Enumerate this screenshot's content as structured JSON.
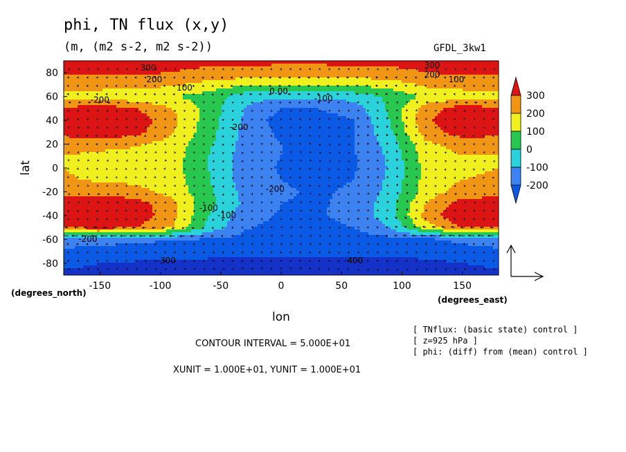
{
  "figure": {
    "title": "phi, TN flux (x,y)",
    "units_line": "(m, (m2 s-2, m2 s-2))",
    "model_label": "GFDL_3kw1",
    "contour_interval": "CONTOUR INTERVAL = 5.000E+01",
    "unit_vectors": "XUNIT = 1.000E+01, YUNIT = 1.000E+01",
    "notes": [
      "[ TNflux: (basic state) control ]",
      "[ z=925 hPa ]",
      "[ phi: (diff) from (mean) control ]"
    ]
  },
  "chart_data": {
    "type": "heatmap",
    "title": "phi, TN flux (x,y)",
    "xlabel": "lon",
    "ylabel": "lat",
    "x_unit_label": "(degrees_east)",
    "y_unit_label": "(degrees_north)",
    "xlim": [
      -180,
      180
    ],
    "ylim": [
      -90,
      90
    ],
    "x_ticks": [
      -150,
      -100,
      -50,
      0,
      50,
      100,
      150
    ],
    "y_ticks": [
      -80,
      -60,
      -40,
      -20,
      0,
      20,
      40,
      60,
      80
    ],
    "x_tick_labels": [
      "-150",
      "-100",
      "-50",
      "0",
      "50",
      "100",
      "150"
    ],
    "y_tick_labels": [
      "-80",
      "-60",
      "-40",
      "-20",
      "0",
      "20",
      "40",
      "60",
      "80"
    ],
    "colorbar": {
      "levels": [
        -200,
        -100,
        0,
        100,
        200,
        300
      ],
      "labels": [
        "-200",
        "-100",
        "0",
        "100",
        "200",
        "300"
      ],
      "colors": [
        "#0a5ae6",
        "#19b4f0",
        "#23dc23",
        "#f0f01e",
        "#f09614",
        "#dc1414",
        "#1432c8",
        "#3c82f0",
        "#2ad2dc",
        "#28c850"
      ]
    },
    "approx_field": {
      "description": "approximate phi (m) as a function of lat (rows) and lon (columns)",
      "lon": [
        -180,
        -150,
        -120,
        -90,
        -60,
        -30,
        0,
        30,
        60,
        90,
        120,
        150,
        180
      ],
      "lat": [
        90,
        80,
        70,
        60,
        50,
        40,
        30,
        20,
        10,
        0,
        -10,
        -20,
        -30,
        -40,
        -50,
        -60,
        -70,
        -80,
        -90
      ],
      "values": [
        [
          320,
          320,
          320,
          320,
          320,
          320,
          320,
          320,
          320,
          320,
          320,
          320,
          320
        ],
        [
          310,
          310,
          310,
          300,
          280,
          270,
          260,
          260,
          270,
          280,
          300,
          310,
          310
        ],
        [
          240,
          240,
          230,
          220,
          160,
          120,
          100,
          100,
          110,
          150,
          220,
          240,
          240
        ],
        [
          160,
          150,
          130,
          100,
          60,
          -60,
          -80,
          -80,
          -60,
          20,
          120,
          150,
          160
        ],
        [
          310,
          360,
          300,
          200,
          60,
          -100,
          -200,
          -200,
          -150,
          20,
          250,
          350,
          310
        ],
        [
          360,
          420,
          360,
          230,
          50,
          -120,
          -250,
          -250,
          -200,
          0,
          280,
          400,
          360
        ],
        [
          330,
          380,
          330,
          210,
          40,
          -130,
          -220,
          -230,
          -200,
          -20,
          250,
          350,
          330
        ],
        [
          240,
          230,
          210,
          160,
          20,
          -140,
          -200,
          -220,
          -200,
          -60,
          180,
          240,
          240
        ],
        [
          200,
          180,
          170,
          150,
          0,
          -150,
          -200,
          -230,
          -210,
          -80,
          150,
          200,
          200
        ],
        [
          200,
          170,
          160,
          140,
          0,
          -150,
          -210,
          -240,
          -210,
          -90,
          130,
          190,
          200
        ],
        [
          210,
          190,
          180,
          150,
          10,
          -150,
          -200,
          -220,
          -200,
          -80,
          140,
          200,
          210
        ],
        [
          260,
          250,
          230,
          170,
          20,
          -130,
          -190,
          -210,
          -190,
          -70,
          150,
          240,
          260
        ],
        [
          350,
          400,
          350,
          220,
          30,
          -120,
          -200,
          -210,
          -180,
          -40,
          200,
          350,
          350
        ],
        [
          360,
          420,
          370,
          230,
          0,
          -160,
          -210,
          -210,
          -170,
          -40,
          240,
          400,
          360
        ],
        [
          300,
          340,
          300,
          200,
          -30,
          -190,
          -230,
          -230,
          -200,
          -100,
          150,
          300,
          300
        ],
        [
          -120,
          -150,
          -180,
          -190,
          -210,
          -230,
          -240,
          -240,
          -240,
          -230,
          -220,
          -170,
          -120
        ],
        [
          -230,
          -240,
          -250,
          -260,
          -270,
          -270,
          -270,
          -270,
          -270,
          -270,
          -260,
          -250,
          -230
        ],
        [
          -290,
          -300,
          -310,
          -310,
          -320,
          -330,
          -340,
          -350,
          -350,
          -340,
          -320,
          -300,
          -290
        ],
        [
          -310,
          -310,
          -320,
          -320,
          -330,
          -330,
          -340,
          -350,
          -350,
          -340,
          -330,
          -320,
          -310
        ]
      ]
    },
    "contour_labels": [
      {
        "text": "300",
        "lon": -110,
        "lat": 82
      },
      {
        "text": "200",
        "lon": -105,
        "lat": 72
      },
      {
        "text": "100",
        "lon": -80,
        "lat": 65
      },
      {
        "text": "0.00",
        "lon": -2,
        "lat": 62
      },
      {
        "text": "-100",
        "lon": 35,
        "lat": 56
      },
      {
        "text": "-200",
        "lon": -150,
        "lat": 55
      },
      {
        "text": "-200",
        "lon": -35,
        "lat": 32
      },
      {
        "text": "-200",
        "lon": -5,
        "lat": -20
      },
      {
        "text": "-100",
        "lon": -60,
        "lat": -36
      },
      {
        "text": "-100",
        "lon": -45,
        "lat": -42
      },
      {
        "text": "-200",
        "lon": -160,
        "lat": -62
      },
      {
        "text": "-300",
        "lon": -95,
        "lat": -80
      },
      {
        "text": "-400",
        "lon": 60,
        "lat": -80
      },
      {
        "text": "300",
        "lon": 125,
        "lat": 84
      },
      {
        "text": "200",
        "lon": 125,
        "lat": 76
      },
      {
        "text": "100",
        "lon": 145,
        "lat": 72
      }
    ]
  }
}
